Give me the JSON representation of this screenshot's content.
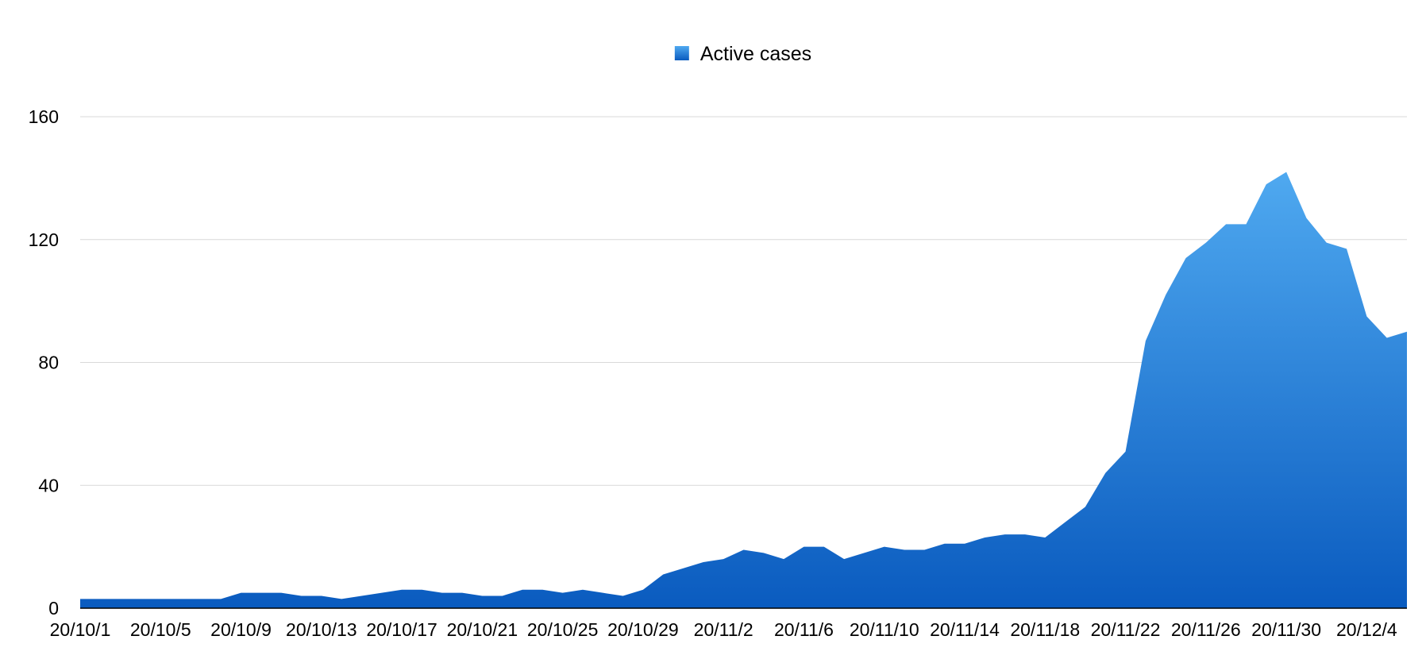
{
  "chart_data": {
    "type": "area",
    "title": "",
    "xlabel": "",
    "ylabel": "",
    "ylim": [
      0,
      160
    ],
    "yticks": [
      0,
      40,
      80,
      120,
      160
    ],
    "ytick_labels": [
      "0",
      "40",
      "80",
      "120",
      "160"
    ],
    "xtick_labels": [
      "20/10/1",
      "20/10/5",
      "20/10/9",
      "20/10/13",
      "20/10/17",
      "20/10/21",
      "20/10/25",
      "20/10/29",
      "20/11/2",
      "20/11/6",
      "20/11/10",
      "20/11/14",
      "20/11/18",
      "20/11/22",
      "20/11/26",
      "20/11/30",
      "20/12/4"
    ],
    "grid": true,
    "legend_position": "top-center",
    "series": [
      {
        "name": "Active cases",
        "color_top": "#4fa9f0",
        "color_bottom": "#0a5bbf",
        "x": [
          "20/10/1",
          "20/10/2",
          "20/10/3",
          "20/10/4",
          "20/10/5",
          "20/10/6",
          "20/10/7",
          "20/10/8",
          "20/10/9",
          "20/10/10",
          "20/10/11",
          "20/10/12",
          "20/10/13",
          "20/10/14",
          "20/10/15",
          "20/10/16",
          "20/10/17",
          "20/10/18",
          "20/10/19",
          "20/10/20",
          "20/10/21",
          "20/10/22",
          "20/10/23",
          "20/10/24",
          "20/10/25",
          "20/10/26",
          "20/10/27",
          "20/10/28",
          "20/10/29",
          "20/10/30",
          "20/10/31",
          "20/11/1",
          "20/11/2",
          "20/11/3",
          "20/11/4",
          "20/11/5",
          "20/11/6",
          "20/11/7",
          "20/11/8",
          "20/11/9",
          "20/11/10",
          "20/11/11",
          "20/11/12",
          "20/11/13",
          "20/11/14",
          "20/11/15",
          "20/11/16",
          "20/11/17",
          "20/11/18",
          "20/11/19",
          "20/11/20",
          "20/11/21",
          "20/11/22",
          "20/11/23",
          "20/11/24",
          "20/11/25",
          "20/11/26",
          "20/11/27",
          "20/11/28",
          "20/11/29",
          "20/11/30",
          "20/12/1",
          "20/12/2",
          "20/12/3",
          "20/12/4",
          "20/12/5",
          "20/12/6"
        ],
        "values": [
          3,
          3,
          3,
          3,
          3,
          3,
          3,
          3,
          5,
          5,
          5,
          4,
          4,
          3,
          4,
          5,
          6,
          6,
          5,
          5,
          4,
          4,
          6,
          6,
          5,
          6,
          5,
          4,
          6,
          11,
          13,
          15,
          16,
          19,
          18,
          16,
          20,
          20,
          16,
          18,
          20,
          19,
          19,
          21,
          21,
          23,
          24,
          24,
          23,
          28,
          33,
          44,
          51,
          87,
          102,
          114,
          119,
          125,
          125,
          138,
          142,
          127,
          119,
          117,
          95,
          88,
          90
        ]
      }
    ]
  }
}
